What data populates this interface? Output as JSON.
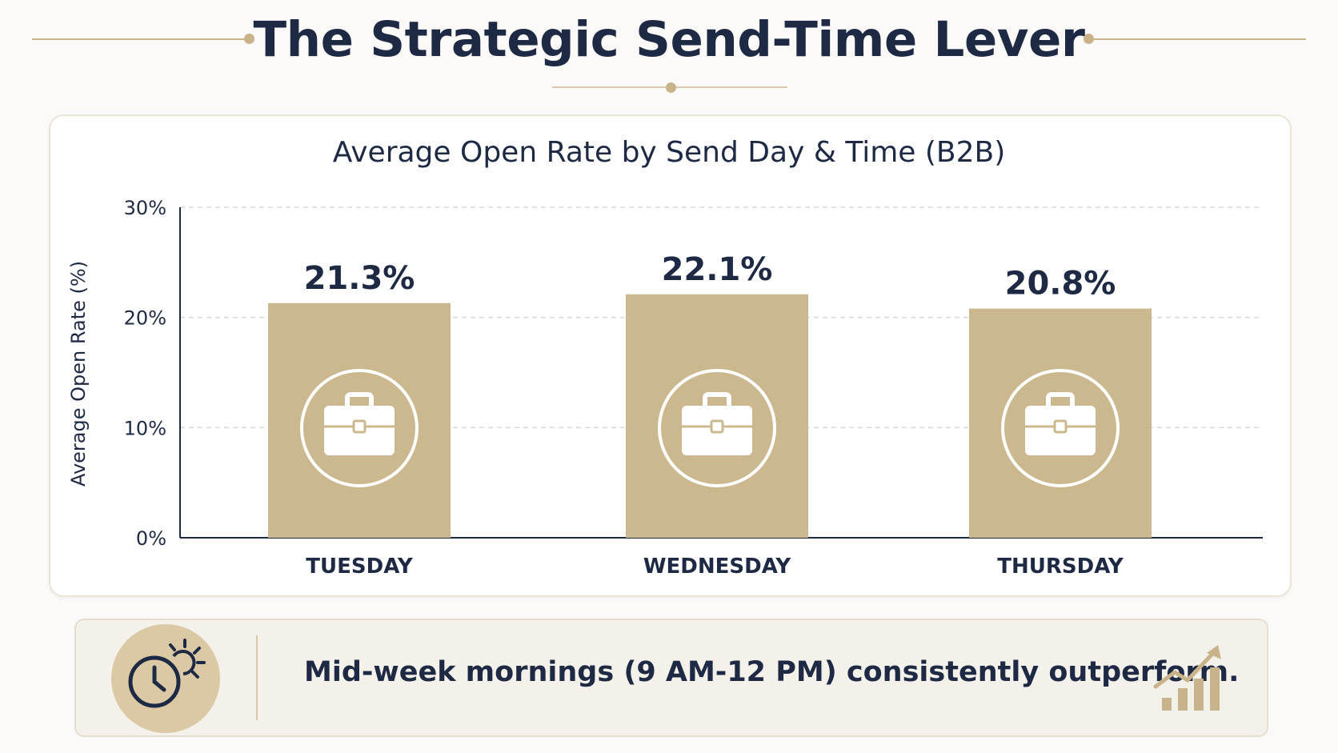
{
  "page": {
    "title": "The Strategic Send-Time Lever"
  },
  "chart_data": {
    "type": "bar",
    "title": "Average Open Rate by Send Day & Time (B2B)",
    "ylabel": "Average Open Rate (%)",
    "xlabel": "",
    "categories": [
      "TUESDAY",
      "WEDNESDAY",
      "THURSDAY"
    ],
    "values": [
      21.3,
      22.1,
      20.8
    ],
    "data_labels": [
      "21.3%",
      "22.1%",
      "20.8%"
    ],
    "ylim": [
      0,
      30
    ],
    "yticks": [
      0,
      10,
      20,
      30
    ],
    "ytick_labels": [
      "0%",
      "10%",
      "20%",
      "30%"
    ],
    "grid": "dashed horizontal",
    "bar_color": "#cbb88e",
    "bar_icon": "briefcase-icon"
  },
  "insight": {
    "text": "Mid-week mornings (9 AM-12 PM) consistently outperform.",
    "left_icon": "clock-sun-icon",
    "right_icon": "growth-chart-icon"
  },
  "colors": {
    "accent": "#c9b38a",
    "text": "#1e2a44",
    "bar": "#cbb88e"
  }
}
